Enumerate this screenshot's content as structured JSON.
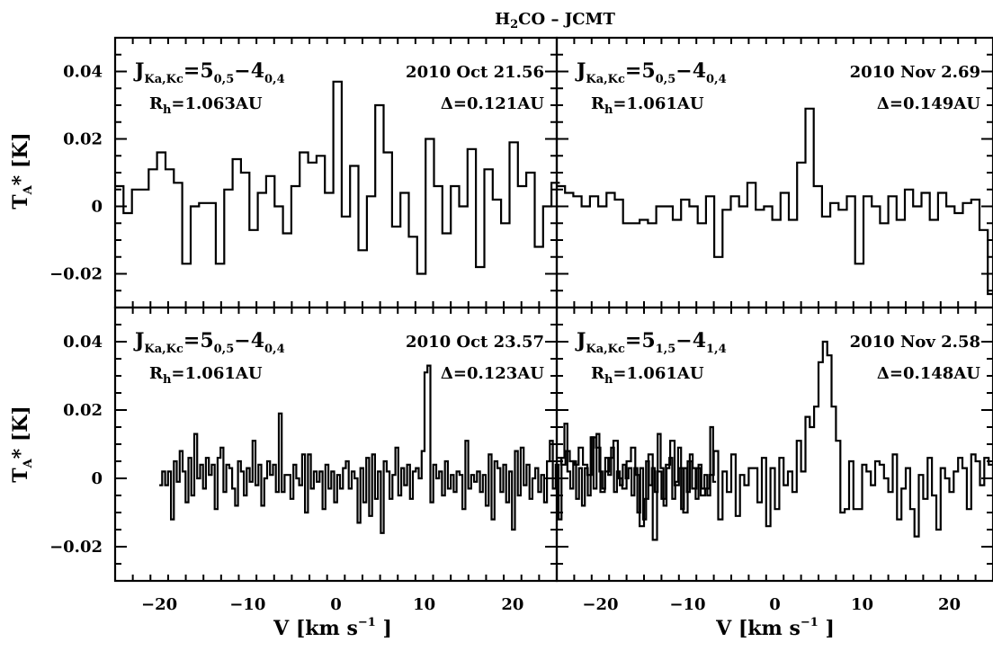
{
  "figure": {
    "title_main": "H",
    "title_sub": "2",
    "title_rest": "CO  –  JCMT",
    "xlabel_pre": "V [km s",
    "xlabel_sup": "−1",
    "xlabel_post": " ]",
    "ylabel_main": "T",
    "ylabel_sub": "A",
    "ylabel_rest": "* [K]"
  },
  "chart_data": [
    {
      "type": "line",
      "panel": "top-left",
      "line_label": {
        "j": "J",
        "j_sub": "Ka,Kc",
        "eq": "=5",
        "up_sub": "0,5",
        "dash": "−4",
        "lo_sub": "0,4"
      },
      "date": "2010 Oct 21.56",
      "rh": {
        "main": "R",
        "sub": "h",
        "val": "=1.063AU"
      },
      "delta": "Δ=0.121AU",
      "xlim": [
        -25,
        25
      ],
      "ylim": [
        -0.03,
        0.05
      ],
      "xticks": [
        -20,
        -10,
        0,
        10,
        20
      ],
      "yticks": [
        -0.02,
        0,
        0.02,
        0.04
      ],
      "yticklabels": [
        "−0.02",
        "0",
        "0.02",
        "0.04"
      ],
      "step": 0.95,
      "x_start": -25.0,
      "y": [
        0.006,
        -0.002,
        0.005,
        0.005,
        0.011,
        0.016,
        0.011,
        0.007,
        -0.017,
        0.0,
        0.001,
        0.001,
        -0.017,
        0.005,
        0.014,
        0.01,
        -0.007,
        0.004,
        0.009,
        0.0,
        -0.008,
        0.006,
        0.016,
        0.013,
        0.015,
        0.004,
        0.037,
        -0.003,
        0.012,
        -0.013,
        0.003,
        0.03,
        0.016,
        -0.006,
        0.004,
        -0.009,
        -0.02,
        0.02,
        0.006,
        -0.008,
        0.006,
        0.0,
        0.017,
        -0.018,
        0.011,
        0.002,
        -0.005,
        0.019,
        0.006,
        0.01,
        -0.012,
        0.0,
        0.007
      ]
    },
    {
      "type": "line",
      "panel": "top-right",
      "line_label": {
        "j": "J",
        "j_sub": "Ka,Kc",
        "eq": "=5",
        "up_sub": "0,5",
        "dash": "−4",
        "lo_sub": "0,4"
      },
      "date": "2010 Nov 2.69",
      "rh": {
        "main": "R",
        "sub": "h",
        "val": "=1.061AU"
      },
      "delta": "Δ=0.149AU",
      "xlim": [
        -25,
        25
      ],
      "ylim": [
        -0.03,
        0.05
      ],
      "xticks": [
        -20,
        -10,
        0,
        10,
        20
      ],
      "yticks": [
        -0.02,
        0,
        0.02,
        0.04
      ],
      "yticklabels": [
        "−0.02",
        "0",
        "0.02",
        "0.04"
      ],
      "step": 0.95,
      "x_start": -25.0,
      "y": [
        0.006,
        0.004,
        0.003,
        0.0,
        0.003,
        0.0,
        0.004,
        0.002,
        -0.005,
        -0.005,
        -0.004,
        -0.005,
        0.0,
        0.0,
        -0.004,
        0.002,
        0.0,
        -0.005,
        0.003,
        -0.015,
        -0.001,
        0.003,
        0.0,
        0.007,
        -0.001,
        0.0,
        -0.004,
        0.004,
        -0.004,
        0.013,
        0.029,
        0.006,
        -0.003,
        0.001,
        -0.001,
        0.003,
        -0.017,
        0.003,
        0.0,
        -0.005,
        0.003,
        -0.004,
        0.005,
        0.0,
        0.004,
        -0.004,
        0.004,
        0.0,
        -0.002,
        0.001,
        0.002,
        -0.007,
        -0.026,
        0.005
      ]
    },
    {
      "type": "line",
      "panel": "bottom-left",
      "line_label": {
        "j": "J",
        "j_sub": "Ka,Kc",
        "eq": "=5",
        "up_sub": "0,5",
        "dash": "−4",
        "lo_sub": "0,4"
      },
      "date": "2010 Oct 23.57",
      "rh": {
        "main": "R",
        "sub": "h",
        "val": "=1.061AU"
      },
      "delta": "Δ=0.123AU",
      "xlim": [
        -25,
        25
      ],
      "ylim": [
        -0.03,
        0.05
      ],
      "xticks": [
        -20,
        -10,
        0,
        10,
        20
      ],
      "yticks": [
        -0.02,
        0,
        0.02,
        0.04
      ],
      "yticklabels": [
        "−0.02",
        "0",
        "0.02",
        "0.04"
      ],
      "step": 0.33,
      "x_start": -20.0,
      "y": [
        -0.002,
        0.002,
        -0.002,
        0.002,
        -0.012,
        0.005,
        -0.001,
        0.008,
        0.002,
        -0.007,
        0.006,
        -0.005,
        0.013,
        0.0,
        0.004,
        -0.003,
        0.006,
        0.001,
        0.004,
        -0.009,
        0.006,
        0.009,
        -0.004,
        0.004,
        0.003,
        -0.003,
        -0.008,
        0.005,
        0.002,
        -0.005,
        0.003,
        -0.001,
        0.011,
        -0.002,
        0.004,
        -0.008,
        0.0,
        0.005,
        0.001,
        0.004,
        -0.004,
        0.019,
        -0.004,
        0.001,
        0.001,
        -0.006,
        0.004,
        0.0,
        -0.002,
        0.007,
        -0.01,
        0.007,
        -0.003,
        0.002,
        -0.001,
        0.002,
        -0.009,
        0.004,
        -0.003,
        0.002,
        -0.007,
        0.001,
        -0.003,
        0.003,
        0.005,
        -0.003,
        0.002,
        0.0,
        -0.013,
        0.003,
        -0.007,
        0.006,
        -0.011,
        0.007,
        -0.006,
        0.002,
        -0.016,
        0.005,
        0.002,
        -0.006,
        0.001,
        0.009,
        -0.005,
        0.003,
        -0.002,
        0.004,
        -0.006,
        0.002,
        0.003,
        0.0,
        0.008,
        0.031,
        0.033,
        -0.007,
        0.004,
        0.0,
        0.002,
        -0.005,
        0.005,
        -0.003,
        0.001,
        -0.004,
        0.002,
        0.001,
        -0.009,
        0.011,
        -0.003,
        0.001,
        -0.001,
        0.002,
        -0.004,
        0.001,
        -0.008,
        0.007,
        -0.012,
        0.005,
        0.003,
        -0.004,
        0.004,
        -0.007,
        0.002,
        -0.015,
        0.008,
        -0.005,
        0.009,
        -0.002,
        0.004,
        -0.006,
        0.0,
        0.003,
        -0.004,
        0.001,
        -0.007,
        0.005,
        0.011,
        -0.003,
        0.004,
        -0.012,
        0.006,
        0.016,
        0.002,
        -0.003,
        0.005,
        -0.006,
        0.003,
        -0.008,
        0.003,
        -0.005,
        0.012,
        -0.003,
        0.013,
        0.002,
        -0.003,
        0.006,
        0.001,
        0.009,
        -0.004,
        0.002,
        -0.002,
        0.004,
        0.0,
        0.003,
        -0.005,
        0.003,
        -0.01,
        0.003,
        -0.012,
        0.005,
        -0.002,
        0.003,
        -0.004,
        0.013,
        0.003,
        -0.008,
        0.003,
        0.006,
        -0.006,
        -0.001,
        0.009,
        -0.009,
        0.003,
        -0.004,
        0.007,
        0.003,
        -0.006,
        0.004,
        -0.003,
        0.001,
        -0.005,
        0.015,
        -0.001
      ]
    },
    {
      "type": "line",
      "panel": "bottom-right",
      "line_label": {
        "j": "J",
        "j_sub": "Ka,Kc",
        "eq": "=5",
        "up_sub": "1,5",
        "dash": "−4",
        "lo_sub": "1,4"
      },
      "date": "2010 Nov 2.58",
      "rh": {
        "main": "R",
        "sub": "h",
        "val": "=1.061AU"
      },
      "delta": "Δ=0.148AU",
      "xlim": [
        -25,
        25
      ],
      "ylim": [
        -0.03,
        0.05
      ],
      "xticks": [
        -20,
        -10,
        0,
        10,
        20
      ],
      "yticks": [
        -0.02,
        0,
        0.02,
        0.04
      ],
      "yticklabels": [
        "−0.02",
        "0",
        "0.02",
        "0.04"
      ],
      "step": 0.5,
      "x_start": -25.0,
      "y": [
        0.006,
        0.004,
        0.008,
        0.005,
        0.004,
        0.009,
        0.004,
        0.001,
        0.012,
        0.009,
        -0.004,
        0.002,
        0.006,
        0.011,
        0.0,
        -0.003,
        0.005,
        0.009,
        0.001,
        -0.014,
        -0.006,
        0.007,
        -0.018,
        0.002,
        -0.006,
        0.004,
        0.011,
        -0.002,
        0.003,
        -0.01,
        0.005,
        -0.003,
        0.003,
        -0.005,
        -0.003,
        0.001,
        0.008,
        -0.012,
        0.002,
        -0.004,
        0.007,
        -0.011,
        0.001,
        -0.002,
        0.003,
        0.003,
        -0.007,
        0.006,
        -0.014,
        0.003,
        -0.009,
        0.006,
        -0.002,
        0.002,
        -0.004,
        0.011,
        0.002,
        0.018,
        0.015,
        0.021,
        0.034,
        0.04,
        0.036,
        0.021,
        0.011,
        -0.01,
        -0.009,
        0.005,
        -0.009,
        -0.009,
        0.004,
        0.002,
        -0.002,
        0.005,
        0.004,
        0.0,
        -0.004,
        0.007,
        -0.012,
        -0.003,
        0.003,
        -0.009,
        -0.017,
        0.001,
        -0.006,
        0.006,
        -0.005,
        -0.015,
        0.003,
        0.0,
        -0.004,
        0.002,
        0.006,
        0.003,
        -0.009,
        0.007,
        0.005,
        -0.002,
        0.006,
        0.004,
        -0.004,
        -0.005,
        -0.004,
        -0.004,
        0.006,
        0.006,
        0.003,
        0.004
      ]
    }
  ]
}
